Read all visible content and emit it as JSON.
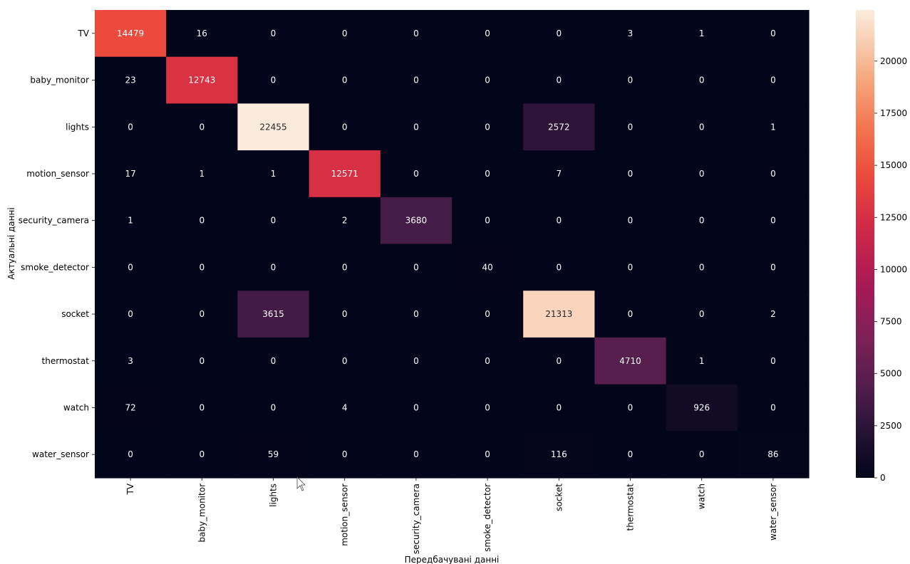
{
  "chart_data": {
    "type": "heatmap",
    "title": "",
    "xlabel": "Передбачувані данні",
    "ylabel": "Актуальні данні",
    "x_categories": [
      "TV",
      "baby_monitor",
      "lights",
      "motion_sensor",
      "security_camera",
      "smoke_detector",
      "socket",
      "thermostat",
      "watch",
      "water_sensor"
    ],
    "y_categories": [
      "TV",
      "baby_monitor",
      "lights",
      "motion_sensor",
      "security_camera",
      "smoke_detector",
      "socket",
      "thermostat",
      "watch",
      "water_sensor"
    ],
    "values": [
      [
        14479,
        16,
        0,
        0,
        0,
        0,
        0,
        3,
        1,
        0
      ],
      [
        23,
        12743,
        0,
        0,
        0,
        0,
        0,
        0,
        0,
        0
      ],
      [
        0,
        0,
        22455,
        0,
        0,
        0,
        2572,
        0,
        0,
        1
      ],
      [
        17,
        1,
        1,
        12571,
        0,
        0,
        7,
        0,
        0,
        0
      ],
      [
        1,
        0,
        0,
        2,
        3680,
        0,
        0,
        0,
        0,
        0
      ],
      [
        0,
        0,
        0,
        0,
        0,
        40,
        0,
        0,
        0,
        0
      ],
      [
        0,
        0,
        3615,
        0,
        0,
        0,
        21313,
        0,
        0,
        2
      ],
      [
        3,
        0,
        0,
        0,
        0,
        0,
        0,
        4710,
        1,
        0
      ],
      [
        72,
        0,
        0,
        4,
        0,
        0,
        0,
        0,
        926,
        0
      ],
      [
        0,
        0,
        59,
        0,
        0,
        0,
        116,
        0,
        0,
        86
      ]
    ],
    "colorbar": {
      "min": 0,
      "max": 22455,
      "ticks": [
        0,
        2500,
        5000,
        7500,
        10000,
        12500,
        15000,
        17500,
        20000
      ],
      "colormap": "rocket"
    },
    "grid": false,
    "legend": "colorbar-right"
  }
}
